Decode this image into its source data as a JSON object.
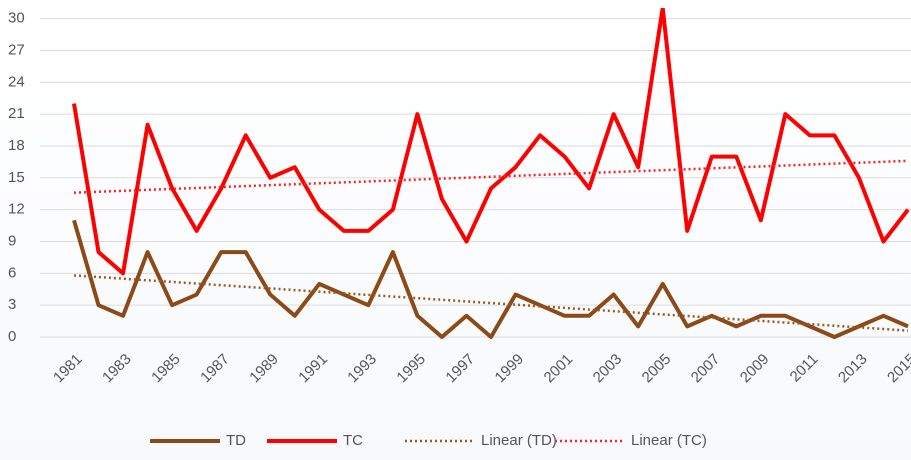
{
  "chart_data": {
    "type": "line",
    "x": [
      1981,
      1982,
      1983,
      1984,
      1985,
      1986,
      1987,
      1988,
      1989,
      1990,
      1991,
      1992,
      1993,
      1994,
      1995,
      1996,
      1997,
      1998,
      1999,
      2000,
      2001,
      2002,
      2003,
      2004,
      2005,
      2006,
      2007,
      2008,
      2009,
      2010,
      2011,
      2012,
      2013,
      2014,
      2015
    ],
    "xlim": [
      1981,
      2015
    ],
    "xticks": [
      1981,
      1983,
      1985,
      1987,
      1989,
      1991,
      1993,
      1995,
      1997,
      1999,
      2001,
      2003,
      2005,
      2007,
      2009,
      2011,
      2013,
      2015
    ],
    "ylim": [
      0,
      31
    ],
    "yticks": [
      0,
      3,
      6,
      9,
      12,
      15,
      18,
      21,
      24,
      27,
      30
    ],
    "grid": true,
    "legend": "bottom",
    "series": [
      {
        "name": "TD",
        "color": "#8b4a17",
        "style": "solid",
        "values": [
          11,
          3,
          2,
          8,
          3,
          4,
          8,
          8,
          4,
          2,
          5,
          4,
          3,
          8,
          2,
          0,
          2,
          0,
          4,
          3,
          2,
          2,
          4,
          1,
          5,
          1,
          2,
          1,
          2,
          2,
          1,
          0,
          1,
          2,
          1
        ]
      },
      {
        "name": "TC",
        "color": "#ff0000",
        "style": "solid",
        "values": [
          22,
          8,
          6,
          20,
          14,
          10,
          14,
          19,
          15,
          16,
          12,
          10,
          10,
          12,
          21,
          13,
          9,
          14,
          16,
          19,
          17,
          14,
          21,
          16,
          31,
          10,
          17,
          17,
          11,
          21,
          19,
          19,
          15,
          9,
          12
        ]
      },
      {
        "name": "Linear (TD)",
        "color": "#9b5a22",
        "style": "dotted",
        "x": [
          1981,
          2015
        ],
        "values": [
          5.8,
          0.6
        ]
      },
      {
        "name": "Linear (TC)",
        "color": "#ff2020",
        "style": "dotted",
        "x": [
          1981,
          2015
        ],
        "values": [
          13.6,
          16.6
        ]
      }
    ]
  }
}
